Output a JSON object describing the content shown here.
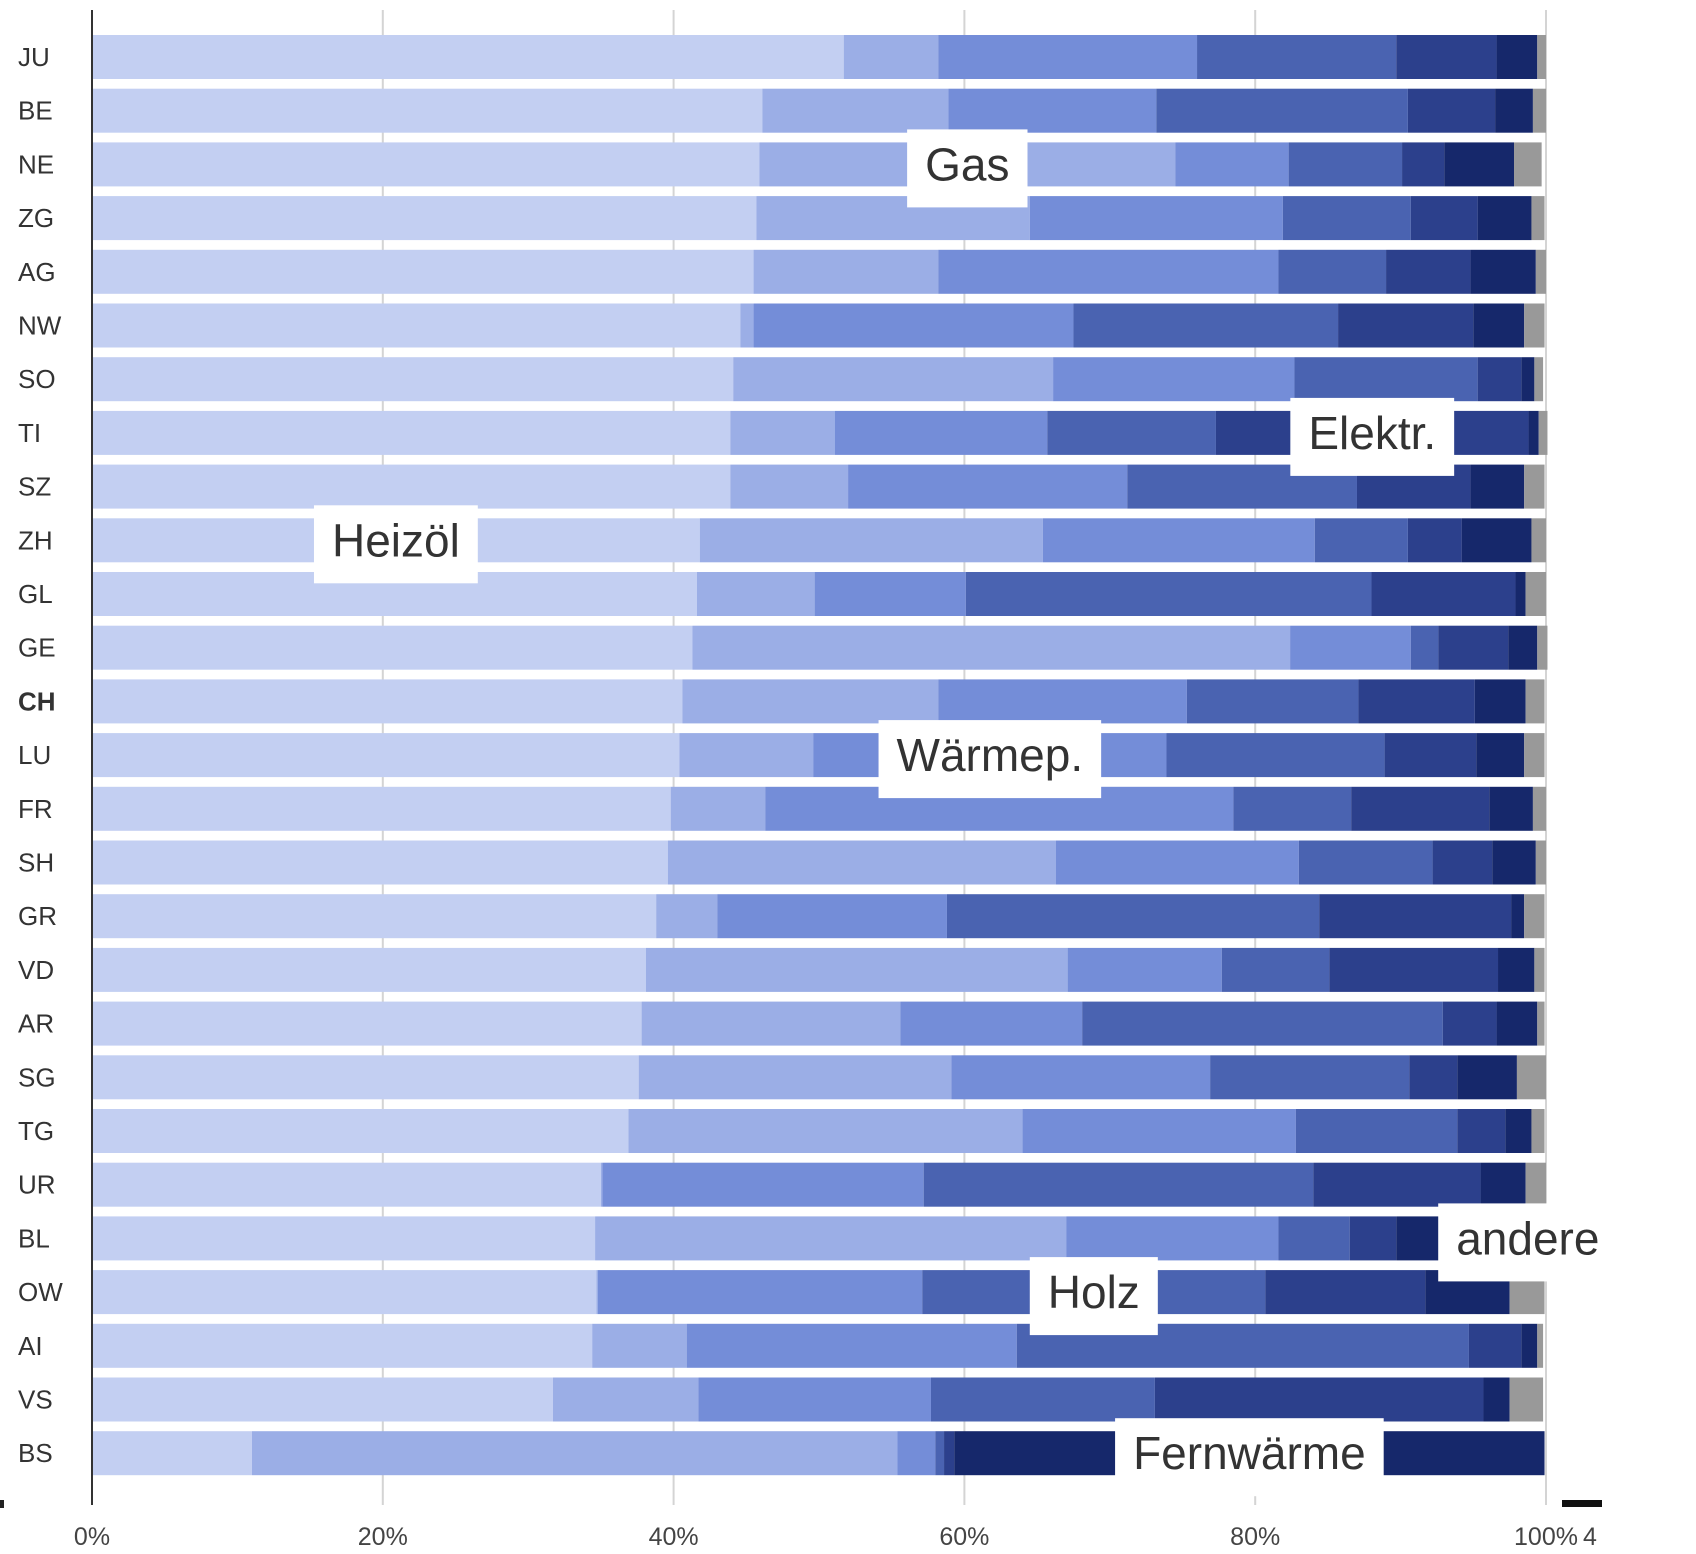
{
  "chart_data": {
    "type": "bar",
    "orientation": "horizontal",
    "stacked": true,
    "normalized": true,
    "highlight_category": "CH",
    "categories": [
      "JU",
      "BE",
      "NE",
      "ZG",
      "AG",
      "NW",
      "SO",
      "TI",
      "SZ",
      "ZH",
      "GL",
      "GE",
      "CH",
      "LU",
      "FR",
      "SH",
      "GR",
      "VD",
      "AR",
      "SG",
      "TG",
      "UR",
      "BL",
      "OW",
      "AI",
      "VS",
      "BS"
    ],
    "series": [
      {
        "name": "Heizöl",
        "color": "#c3cff2",
        "values": [
          51.7,
          46.1,
          45.9,
          45.7,
          45.5,
          44.6,
          44.1,
          43.9,
          43.9,
          41.8,
          41.6,
          41.3,
          40.6,
          40.4,
          39.8,
          39.6,
          38.8,
          38.1,
          37.8,
          37.6,
          36.9,
          35.0,
          34.6,
          34.7,
          34.4,
          31.7,
          11.0
        ]
      },
      {
        "name": "Gas",
        "color": "#9baee6",
        "values": [
          6.5,
          12.8,
          28.6,
          18.8,
          12.7,
          0.9,
          22.0,
          7.2,
          8.1,
          23.6,
          8.1,
          41.1,
          17.6,
          9.2,
          6.5,
          26.7,
          4.2,
          29.0,
          17.8,
          21.5,
          27.1,
          0.1,
          32.4,
          0.1,
          6.5,
          10.0,
          44.4
        ]
      },
      {
        "name": "Wärmep.",
        "color": "#748dd8",
        "values": [
          17.8,
          14.3,
          7.8,
          17.4,
          23.4,
          22.0,
          16.6,
          14.6,
          19.2,
          18.7,
          10.4,
          8.3,
          17.1,
          24.3,
          32.2,
          16.7,
          15.8,
          10.6,
          12.5,
          17.8,
          18.8,
          22.1,
          14.6,
          22.3,
          22.7,
          16.0,
          2.6
        ]
      },
      {
        "name": "Holz",
        "color": "#4a63b1",
        "values": [
          13.7,
          17.3,
          7.8,
          8.8,
          7.4,
          18.2,
          12.6,
          11.6,
          15.8,
          6.4,
          27.9,
          1.9,
          11.8,
          15.0,
          8.1,
          9.2,
          25.6,
          7.4,
          24.8,
          13.7,
          11.1,
          26.8,
          4.9,
          23.6,
          31.1,
          15.4,
          0.6
        ]
      },
      {
        "name": "Elektr.",
        "color": "#2c408c",
        "values": [
          6.9,
          6.0,
          2.9,
          4.6,
          5.8,
          9.3,
          3.0,
          21.5,
          7.8,
          3.7,
          9.9,
          4.8,
          8.0,
          6.3,
          9.5,
          4.1,
          13.2,
          11.6,
          3.7,
          3.3,
          3.3,
          11.5,
          3.2,
          11.0,
          3.6,
          22.6,
          0.7
        ]
      },
      {
        "name": "Fernwärme",
        "color": "#16286b",
        "values": [
          2.8,
          2.6,
          4.8,
          3.7,
          4.5,
          3.5,
          0.9,
          0.7,
          3.7,
          4.8,
          0.7,
          2.0,
          3.5,
          3.3,
          3.0,
          3.0,
          0.9,
          2.5,
          2.8,
          4.1,
          1.8,
          3.1,
          7.9,
          5.8,
          1.1,
          1.8,
          40.6
        ]
      },
      {
        "name": "andere",
        "color": "#999999",
        "values": [
          0.6,
          0.9,
          1.9,
          0.9,
          0.7,
          1.4,
          0.6,
          0.6,
          1.4,
          1.0,
          1.4,
          0.7,
          1.3,
          1.4,
          0.9,
          0.7,
          1.4,
          0.7,
          0.5,
          2.0,
          0.9,
          1.4,
          2.3,
          2.4,
          0.4,
          2.3,
          0.0
        ]
      }
    ],
    "segment_labels": [
      {
        "text": "Gas",
        "series": "Gas",
        "row": "NE"
      },
      {
        "text": "Elektr.",
        "series": "Elektr.",
        "row": "TI"
      },
      {
        "text": "Heizöl",
        "series": "Heizöl",
        "row": "ZH"
      },
      {
        "text": "Wärmep.",
        "series": "Wärmep.",
        "row": "LU"
      },
      {
        "text": "andere",
        "series": "andere",
        "row": "BL"
      },
      {
        "text": "Holz",
        "series": "Holz",
        "row": "OW"
      },
      {
        "text": "Fernwärme",
        "series": "Fernwärme",
        "row": "BS"
      }
    ],
    "xticks": [
      "0%",
      "20%",
      "40%",
      "60%",
      "80%",
      "100%"
    ],
    "xlim": [
      0,
      100
    ],
    "grid": true,
    "legend": "none",
    "corner_label": "4"
  }
}
